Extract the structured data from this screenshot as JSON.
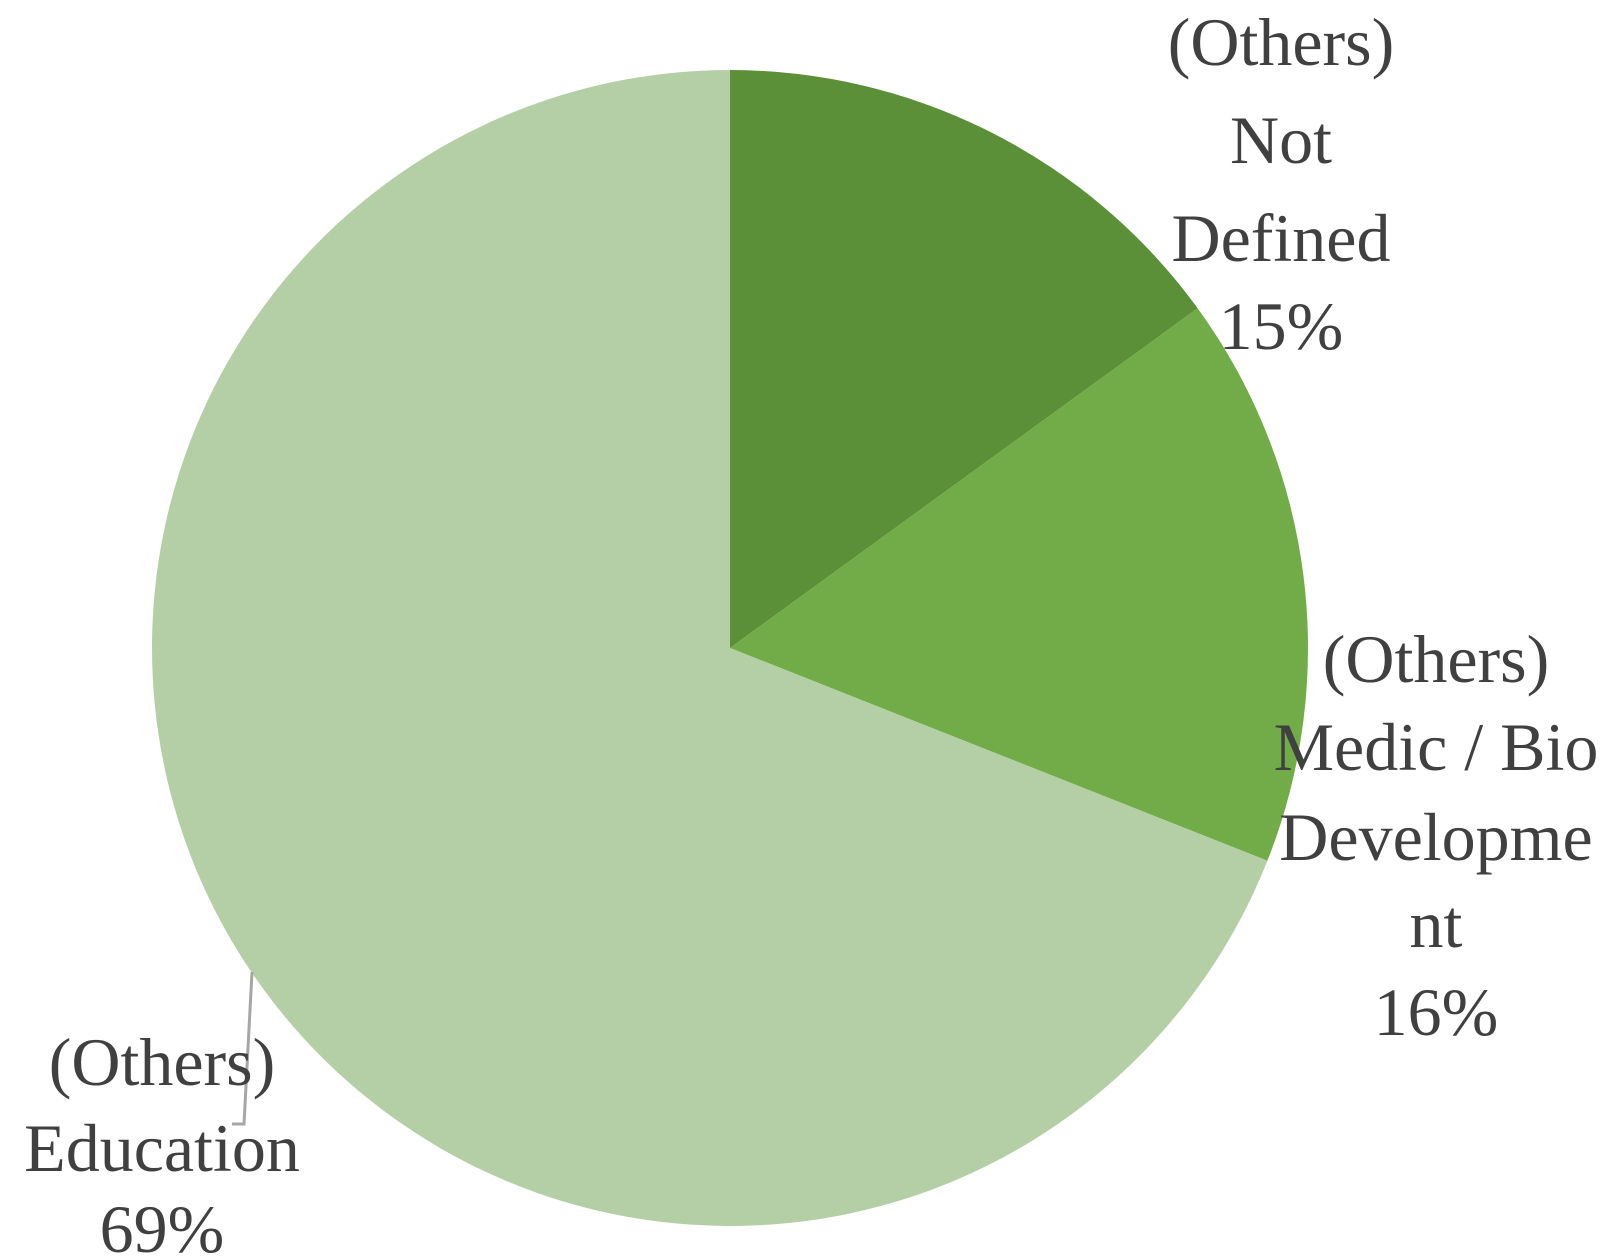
{
  "chart_data": {
    "type": "pie",
    "title": "",
    "slices": [
      {
        "label_lines": [
          "(Others)",
          "Not",
          "Defined"
        ],
        "value": 15,
        "pct_label": "15%",
        "color": "#5b8f38"
      },
      {
        "label_lines": [
          "(Others)",
          "Medic / Bio",
          "Developme",
          "nt"
        ],
        "value": 16,
        "pct_label": "16%",
        "color": "#71ac48"
      },
      {
        "label_lines": [
          "(Others)",
          "Education"
        ],
        "value": 69,
        "pct_label": "69%",
        "color": "#b4cfa6"
      }
    ],
    "start": "12 o'clock",
    "direction": "clockwise",
    "legend": "none",
    "data_labels": "category name and percentage outside slices",
    "leader_line_color": "#a6a6a6"
  }
}
